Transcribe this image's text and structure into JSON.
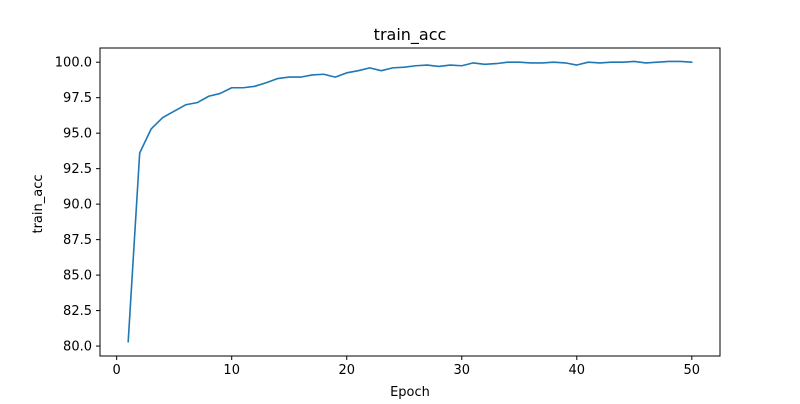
{
  "chart_data": {
    "type": "line",
    "title": "train_acc",
    "xlabel": "Epoch",
    "ylabel": "train_acc",
    "xlim": [
      -1.45,
      52.45
    ],
    "ylim": [
      79.3,
      101.0
    ],
    "xticks": [
      0,
      10,
      20,
      30,
      40,
      50
    ],
    "yticks": [
      80.0,
      82.5,
      85.0,
      87.5,
      90.0,
      92.5,
      95.0,
      97.5,
      100.0
    ],
    "xtick_labels": [
      "0",
      "10",
      "20",
      "30",
      "40",
      "50"
    ],
    "ytick_labels": [
      "80.0",
      "82.5",
      "85.0",
      "87.5",
      "90.0",
      "92.5",
      "95.0",
      "97.5",
      "100.0"
    ],
    "grid": false,
    "line_color": "#1f77b4",
    "series": [
      {
        "x": [
          1,
          2,
          3,
          4,
          5,
          6,
          7,
          8,
          9,
          10,
          11,
          12,
          13,
          14,
          15,
          16,
          17,
          18,
          19,
          20,
          21,
          22,
          23,
          24,
          25,
          26,
          27,
          28,
          29,
          30,
          31,
          32,
          33,
          34,
          35,
          36,
          37,
          38,
          39,
          40,
          41,
          42,
          43,
          44,
          45,
          46,
          47,
          48,
          49,
          50
        ],
        "values": [
          80.3,
          93.6,
          95.3,
          96.1,
          96.55,
          97.0,
          97.15,
          97.6,
          97.8,
          98.2,
          98.2,
          98.3,
          98.55,
          98.85,
          98.95,
          98.95,
          99.1,
          99.15,
          98.95,
          99.25,
          99.4,
          99.6,
          99.4,
          99.6,
          99.65,
          99.75,
          99.8,
          99.7,
          99.8,
          99.75,
          99.95,
          99.85,
          99.9,
          100.0,
          100.0,
          99.95,
          99.95,
          100.0,
          99.95,
          99.8,
          100.0,
          99.95,
          100.0,
          100.0,
          100.05,
          99.95,
          100.0,
          100.05,
          100.05,
          100.0
        ]
      }
    ]
  }
}
